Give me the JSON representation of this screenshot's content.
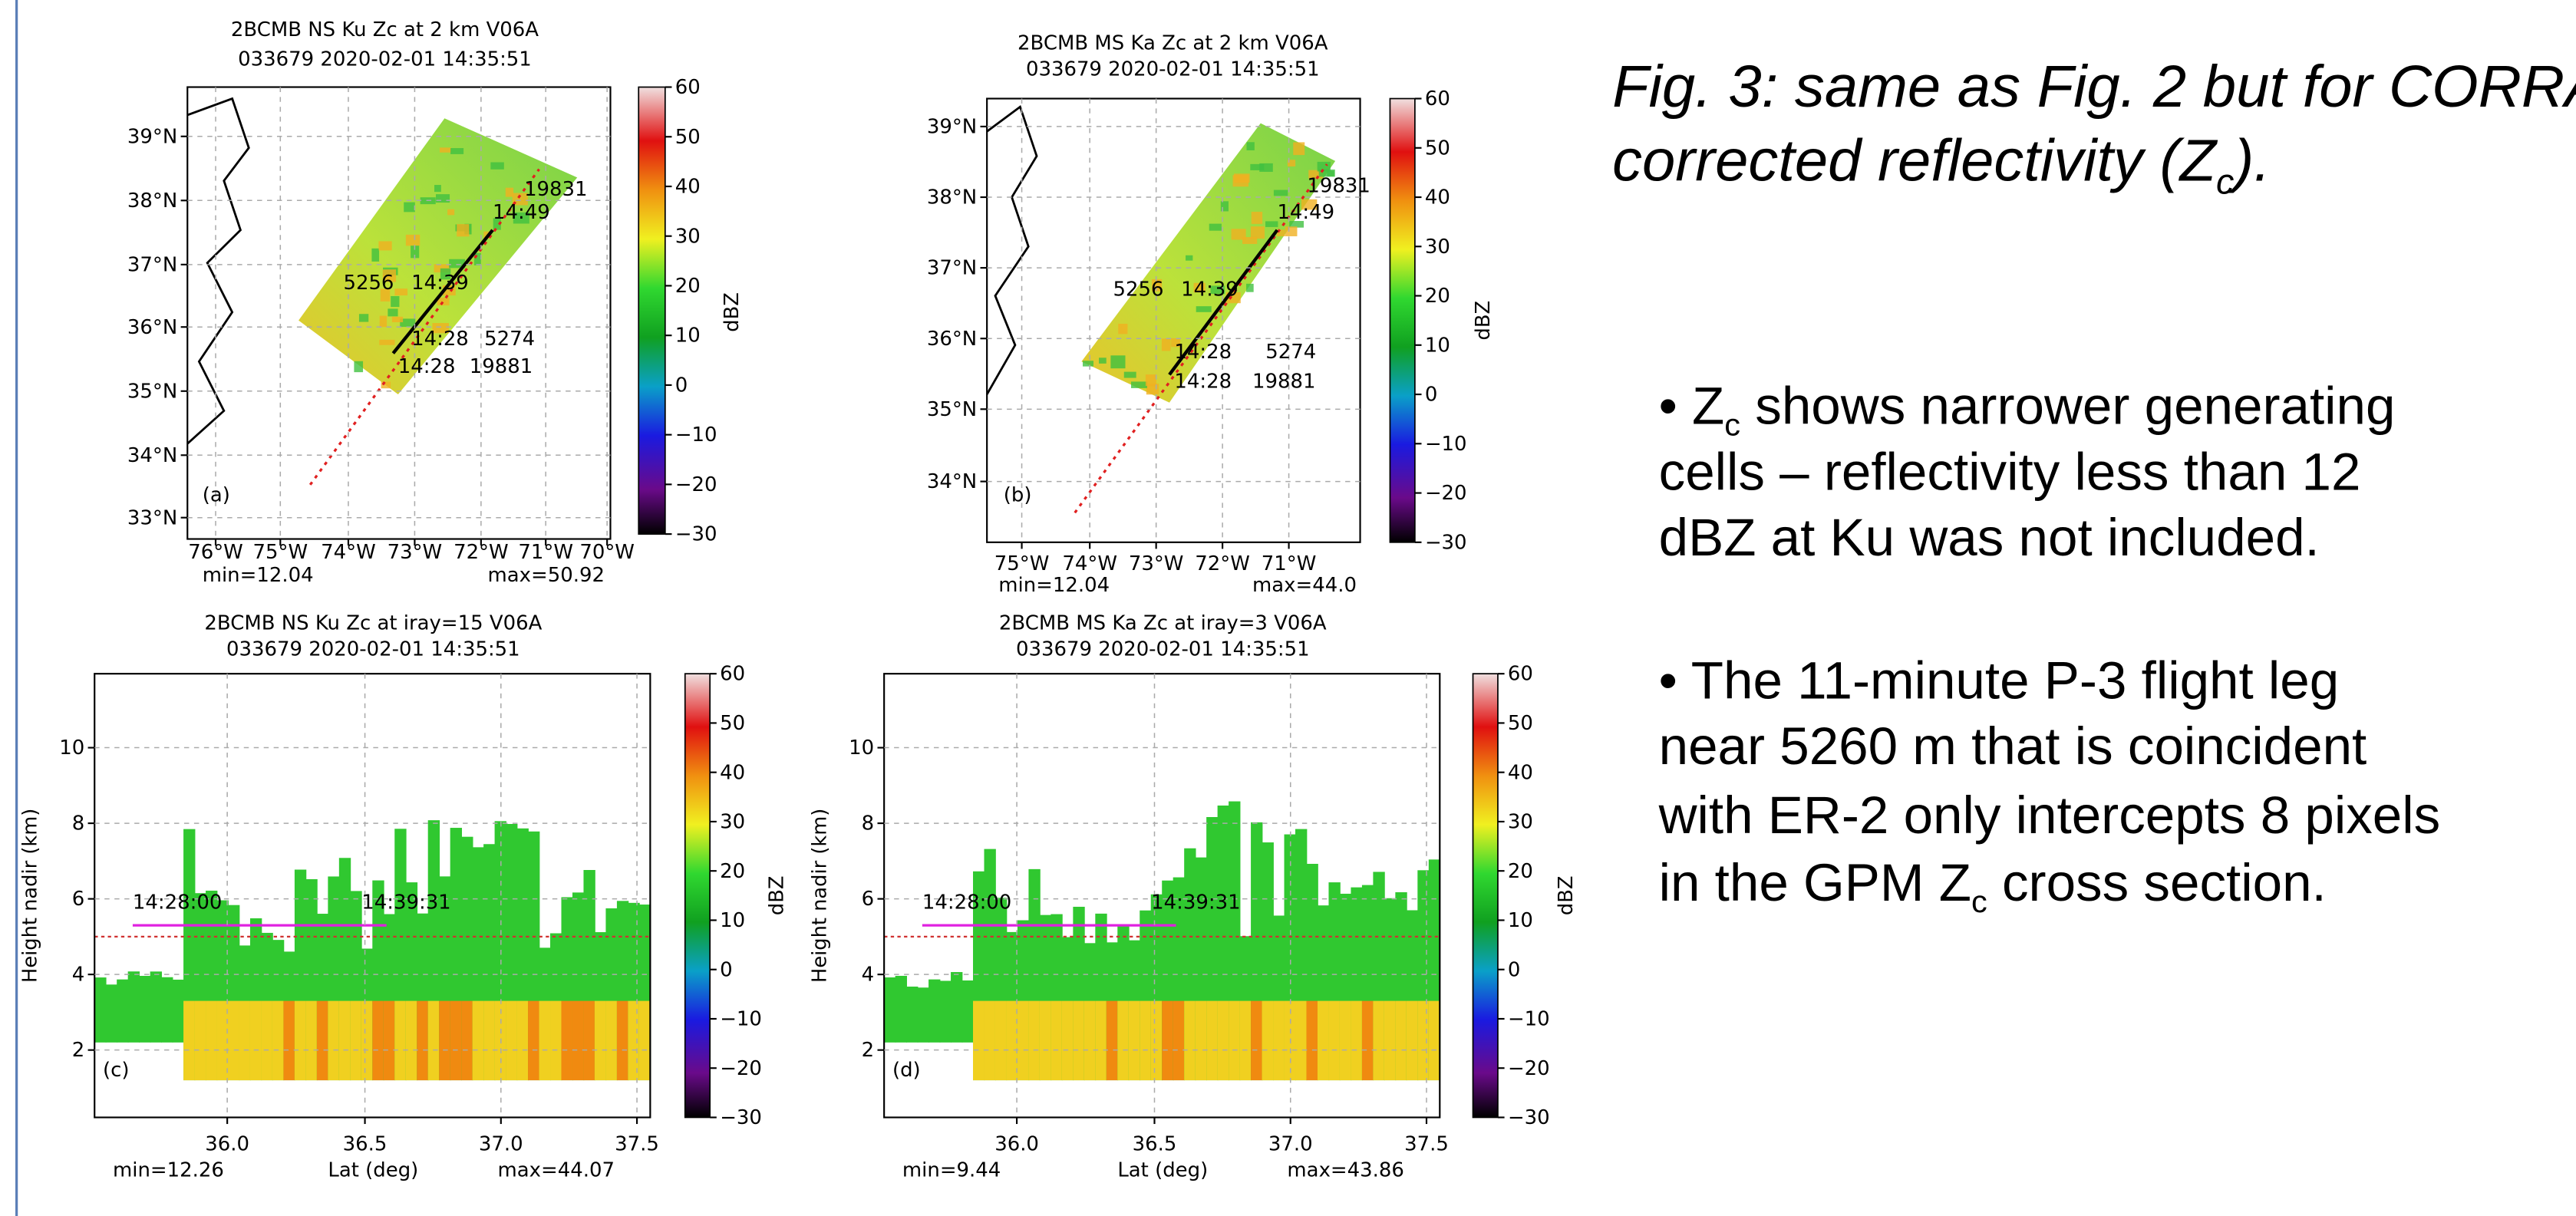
{
  "panels": [
    {
      "title": [
        "2BCMB NS Ku Zc at 2 km V06A",
        "033679 2020-02-01 14:35:51"
      ],
      "label": "(a)",
      "yticks": [
        "39°N",
        "38°N",
        "37°N",
        "36°N",
        "35°N",
        "34°N",
        "33°N"
      ],
      "xticks": [
        "76°W",
        "75°W",
        "74°W",
        "73°W",
        "72°W",
        "71°W",
        "70°W"
      ],
      "min": "min=12.04",
      "max": "max=50.92",
      "cbar_ticks": [
        "60",
        "50",
        "40",
        "30",
        "20",
        "10",
        "0",
        "−10",
        "−20",
        "−30"
      ],
      "cbar_label": "dBZ",
      "annotations": [
        "19831",
        "14:49",
        "5256",
        "14:39",
        "14:28",
        "5274",
        "14:28",
        "19881"
      ]
    },
    {
      "title": [
        "2BCMB MS Ka Zc at 2 km V06A",
        "033679 2020-02-01 14:35:51"
      ],
      "label": "(b)",
      "yticks": [
        "39°N",
        "38°N",
        "37°N",
        "36°N",
        "35°N",
        "34°N"
      ],
      "xticks": [
        "75°W",
        "74°W",
        "73°W",
        "72°W",
        "71°W"
      ],
      "min": "min=12.04",
      "max": "max=44.0",
      "cbar_ticks": [
        "60",
        "50",
        "40",
        "30",
        "20",
        "10",
        "0",
        "−10",
        "−20",
        "−30"
      ],
      "cbar_label": "dBZ",
      "annotations": [
        "19831",
        "14:49",
        "5256",
        "14:39",
        "14:28",
        "5274",
        "14:28",
        "19881"
      ]
    },
    {
      "title": [
        "2BCMB NS Ku Zc at iray=15 V06A",
        "033679 2020-02-01 14:35:51"
      ],
      "label": "(c)",
      "yticks": [
        "10",
        "8",
        "6",
        "4",
        "2"
      ],
      "xticks": [
        "36.0",
        "36.5",
        "37.0",
        "37.5"
      ],
      "min": "min=12.26",
      "max": "max=44.07",
      "xlabel": "Lat (deg)",
      "ylabel": "Height nadir (km)",
      "cbar_ticks": [
        "60",
        "50",
        "40",
        "30",
        "20",
        "10",
        "0",
        "−10",
        "−20",
        "−30"
      ],
      "cbar_label": "dBZ",
      "annotations": [
        "14:28:00",
        "14:39:31"
      ]
    },
    {
      "title": [
        "2BCMB MS Ka Zc at iray=3 V06A",
        "033679 2020-02-01 14:35:51"
      ],
      "label": "(d)",
      "yticks": [
        "10",
        "8",
        "6",
        "4",
        "2"
      ],
      "xticks": [
        "36.0",
        "36.5",
        "37.0",
        "37.5"
      ],
      "min": "min=9.44",
      "max": "max=43.86",
      "xlabel": "Lat (deg)",
      "ylabel": "Height nadir (km)",
      "cbar_ticks": [
        "60",
        "50",
        "40",
        "30",
        "20",
        "10",
        "0",
        "−10",
        "−20",
        "−30"
      ],
      "cbar_label": "dBZ",
      "annotations": [
        "14:28:00",
        "14:39:31"
      ]
    }
  ],
  "caption": [
    [
      "Fig. 3: same as Fig. 2 but for CORRA"
    ],
    [
      "corrected reflectivity (Z",
      "c",
      ")."
    ]
  ],
  "bullets": [
    [
      [
        "• Z",
        "c",
        " shows narrower generating"
      ],
      [
        "cells – reflectivity less than 12"
      ],
      [
        "dBZ at Ku was not included."
      ]
    ],
    [
      [
        "• The 11-minute P-3 flight leg"
      ],
      [
        "near 5260 m that is coincident"
      ],
      [
        "with ER-2 only intercepts 8 pixels"
      ],
      [
        "in the GPM Z",
        "c",
        " cross section."
      ]
    ]
  ]
}
